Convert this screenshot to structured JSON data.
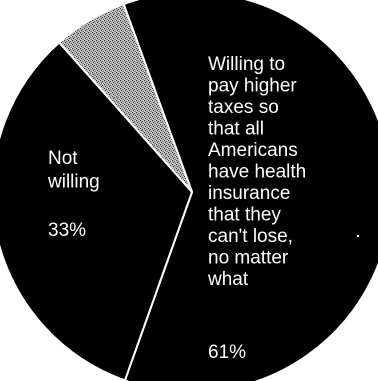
{
  "chart_data": {
    "type": "pie",
    "start_angle_deg": -20,
    "direction": "clockwise",
    "slices": [
      {
        "label_lines": [
          "Willing to",
          "pay higher",
          "taxes so",
          "that all",
          "Americans",
          "have health",
          "insurance",
          "that they",
          "can't lose,",
          "no matter",
          "what"
        ],
        "value_label": "61%",
        "value": 61,
        "color": "#000000"
      },
      {
        "label_lines": [
          "Not",
          "willing"
        ],
        "value_label": "33%",
        "value": 33,
        "color": "#000000"
      },
      {
        "label_lines": [],
        "value_label": "",
        "value": 6,
        "color": "#9a9a9a",
        "pattern": "stipple"
      }
    ],
    "slice_border_color": "#ffffff"
  }
}
